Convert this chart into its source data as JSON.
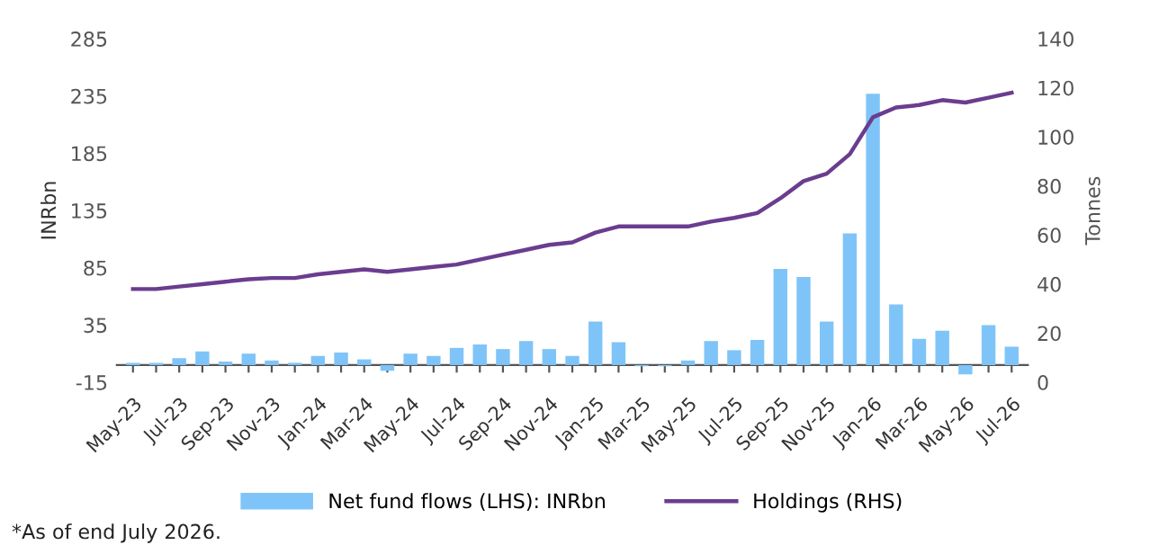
{
  "chart_data": {
    "type": "bar",
    "categories": [
      "May-23",
      null,
      "Jul-23",
      null,
      "Sep-23",
      null,
      "Nov-23",
      null,
      "Jan-24",
      null,
      "Mar-24",
      null,
      "May-24",
      null,
      "Jul-24",
      null,
      "Sep-24",
      null,
      "Nov-24",
      null,
      "Jan-25",
      null,
      "Mar-25",
      null,
      "May-25",
      null,
      "Jul-25",
      null,
      "Sep-25",
      null,
      "Nov-25",
      null,
      "Jan-26",
      null,
      "Mar-26",
      null,
      "May-26",
      null,
      "Jul-26"
    ],
    "series": [
      {
        "name": "Net fund flows (LHS): INRbn",
        "color": "#7fc4f8",
        "values": [
          2,
          2,
          6,
          12,
          3,
          10,
          4,
          2,
          8,
          11,
          5,
          -5,
          10,
          8,
          15,
          18,
          14,
          21,
          14,
          8,
          38,
          20,
          -1,
          -1,
          4,
          21,
          13,
          22,
          84,
          77,
          38,
          115,
          237,
          53,
          23,
          30,
          -8,
          35,
          16
        ]
      },
      {
        "name": "Holdings (RHS)",
        "type": "line",
        "axis": "y2",
        "color": "#6a3d8f",
        "values": [
          38,
          38,
          39,
          40,
          41,
          42,
          42.5,
          42.5,
          44,
          45,
          46,
          45,
          46,
          47,
          48,
          50,
          52,
          54,
          56,
          57,
          61,
          63.5,
          63.5,
          63.5,
          63.5,
          65.5,
          67,
          69,
          75,
          82,
          85,
          93,
          108,
          112,
          113,
          115,
          114,
          116,
          118
        ]
      }
    ],
    "ylabel": "INRbn",
    "y2label": "Tonnes",
    "ylim": [
      -15,
      285
    ],
    "yticks": [
      -15,
      35,
      85,
      135,
      185,
      235,
      285
    ],
    "y2lim": [
      0,
      140
    ],
    "y2ticks": [
      0,
      20,
      40,
      60,
      80,
      100,
      120,
      140
    ],
    "grid": false,
    "legend": "bottom",
    "marker": "none",
    "line_style": "solid",
    "annotations": [
      "*As of end July 2026."
    ]
  }
}
